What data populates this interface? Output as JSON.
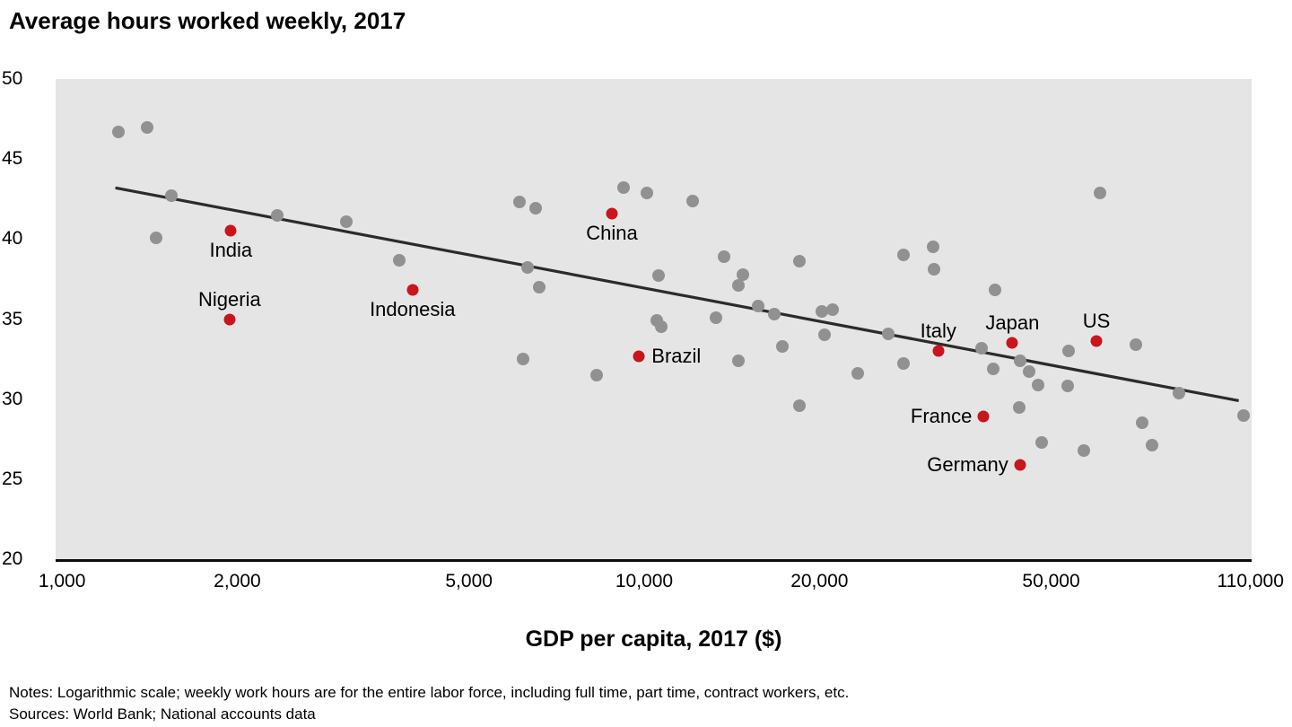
{
  "title": "Average hours worked weekly, 2017",
  "notes": "Notes: Logarithmic scale; weekly work hours are for the entire labor force, including full time, part time, contract workers, etc.",
  "sources": "Sources: World Bank; National accounts data",
  "colors": {
    "plot_background": "#e5e5e6",
    "gray_point": "#919191",
    "highlight_point": "#c9151c",
    "trend_line": "#2b2b2b",
    "axis_line": "#0d0d0d",
    "text": "#000000"
  },
  "chart_data": {
    "type": "scatter",
    "title": "Average hours worked weekly, 2017",
    "xlabel": "GDP per capita, 2017 ($)",
    "ylabel": "",
    "x_scale": "log",
    "xlim": [
      975,
      110500
    ],
    "ylim": [
      20,
      50
    ],
    "x_ticks": [
      {
        "value": 1000,
        "label": "1,000"
      },
      {
        "value": 2000,
        "label": "2,000"
      },
      {
        "value": 5000,
        "label": "5,000"
      },
      {
        "value": 10000,
        "label": "10,000"
      },
      {
        "value": 20000,
        "label": "20,000"
      },
      {
        "value": 50000,
        "label": "50,000"
      },
      {
        "value": 110000,
        "label": "110,000"
      }
    ],
    "y_ticks": [
      50,
      45,
      40,
      35,
      30,
      25,
      20
    ],
    "grid": false,
    "legend": "none",
    "points": [
      [
        1250,
        46.7
      ],
      [
        1400,
        47.0
      ],
      [
        1540,
        42.7
      ],
      [
        1450,
        40.1
      ],
      [
        2340,
        41.5
      ],
      [
        3080,
        41.1
      ],
      [
        3800,
        38.7
      ],
      [
        6100,
        42.3
      ],
      [
        6500,
        41.9
      ],
      [
        9200,
        43.2
      ],
      [
        10100,
        42.9
      ],
      [
        12100,
        42.4
      ],
      [
        6300,
        38.2
      ],
      [
        6600,
        37.0
      ],
      [
        6200,
        32.5
      ],
      [
        8300,
        31.5
      ],
      [
        10600,
        37.7
      ],
      [
        13700,
        38.9
      ],
      [
        14800,
        37.8
      ],
      [
        14500,
        37.1
      ],
      [
        13300,
        35.1
      ],
      [
        10500,
        34.9
      ],
      [
        10700,
        34.5
      ],
      [
        14500,
        32.4
      ],
      [
        15700,
        35.8
      ],
      [
        16700,
        35.3
      ],
      [
        20200,
        35.5
      ],
      [
        21100,
        35.6
      ],
      [
        20400,
        34.0
      ],
      [
        17300,
        33.3
      ],
      [
        18500,
        38.6
      ],
      [
        26300,
        34.1
      ],
      [
        27900,
        32.2
      ],
      [
        23300,
        31.6
      ],
      [
        18500,
        29.6
      ],
      [
        27900,
        39.0
      ],
      [
        31300,
        39.5
      ],
      [
        31500,
        38.1
      ],
      [
        40100,
        36.8
      ],
      [
        38000,
        33.2
      ],
      [
        39800,
        31.9
      ],
      [
        44300,
        32.4
      ],
      [
        45900,
        31.7
      ],
      [
        47500,
        30.9
      ],
      [
        53400,
        30.8
      ],
      [
        44000,
        29.5
      ],
      [
        53600,
        33.0
      ],
      [
        60700,
        42.9
      ],
      [
        70000,
        33.4
      ],
      [
        82800,
        30.4
      ],
      [
        71600,
        28.5
      ],
      [
        48200,
        27.3
      ],
      [
        74500,
        27.1
      ],
      [
        56900,
        26.8
      ],
      [
        107000,
        29.0
      ]
    ],
    "highlighted_points": [
      {
        "name": "India",
        "gdp": 1950,
        "hours": 40.5,
        "label_pos": "below"
      },
      {
        "name": "Nigeria",
        "gdp": 1940,
        "hours": 35.0,
        "label_pos": "above"
      },
      {
        "name": "Indonesia",
        "gdp": 4000,
        "hours": 36.8,
        "label_pos": "below"
      },
      {
        "name": "China",
        "gdp": 8800,
        "hours": 41.6,
        "label_pos": "below"
      },
      {
        "name": "Brazil",
        "gdp": 9800,
        "hours": 32.7,
        "label_pos": "right"
      },
      {
        "name": "Italy",
        "gdp": 32000,
        "hours": 33.0,
        "label_pos": "above"
      },
      {
        "name": "Japan",
        "gdp": 42900,
        "hours": 33.5,
        "label_pos": "above"
      },
      {
        "name": "US",
        "gdp": 59800,
        "hours": 33.6,
        "label_pos": "above"
      },
      {
        "name": "France",
        "gdp": 38300,
        "hours": 28.9,
        "label_pos": "left"
      },
      {
        "name": "Germany",
        "gdp": 44200,
        "hours": 25.9,
        "label_pos": "left"
      }
    ],
    "trend_line": {
      "x1": 1235,
      "y1": 43.2,
      "x2": 105000,
      "y2": 29.9
    }
  }
}
